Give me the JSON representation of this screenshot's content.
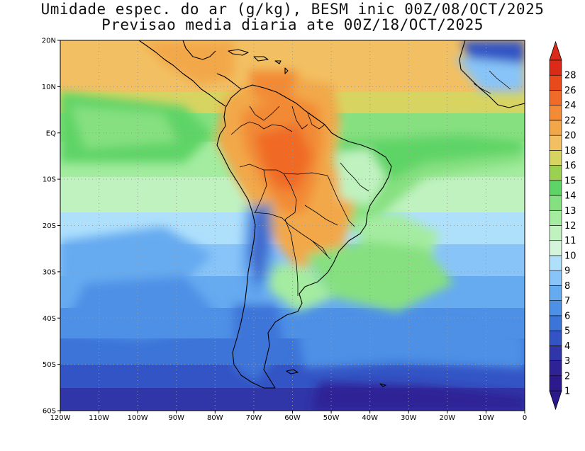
{
  "title": {
    "line1": "Umidade espec. do ar (g/kg), BESM inic 00Z/08/OCT/2025",
    "line2": "Previsao media diaria ate 00Z/18/OCT/2025"
  },
  "axes": {
    "lon_range": [
      -120,
      0
    ],
    "lat_range": [
      -60,
      20
    ],
    "lon_ticks": [
      {
        "lon": -120,
        "label": "120W"
      },
      {
        "lon": -110,
        "label": "110W"
      },
      {
        "lon": -100,
        "label": "100W"
      },
      {
        "lon": -90,
        "label": "90W"
      },
      {
        "lon": -80,
        "label": "80W"
      },
      {
        "lon": -70,
        "label": "70W"
      },
      {
        "lon": -60,
        "label": "60W"
      },
      {
        "lon": -50,
        "label": "50W"
      },
      {
        "lon": -40,
        "label": "40W"
      },
      {
        "lon": -30,
        "label": "30W"
      },
      {
        "lon": -20,
        "label": "20W"
      },
      {
        "lon": -10,
        "label": "10W"
      },
      {
        "lon": 0,
        "label": "0"
      }
    ],
    "lat_ticks": [
      {
        "lat": 20,
        "label": "20N"
      },
      {
        "lat": 10,
        "label": "10N"
      },
      {
        "lat": 0,
        "label": "EQ"
      },
      {
        "lat": -10,
        "label": "10S"
      },
      {
        "lat": -20,
        "label": "20S"
      },
      {
        "lat": -30,
        "label": "30S"
      },
      {
        "lat": -40,
        "label": "40S"
      },
      {
        "lat": -50,
        "label": "50S"
      },
      {
        "lat": -60,
        "label": "60S"
      }
    ],
    "grid": true
  },
  "colorbar": {
    "levels": [
      {
        "label": "1",
        "color": "#2c1a8c"
      },
      {
        "label": "2",
        "color": "#2e2296"
      },
      {
        "label": "3",
        "color": "#3036a8"
      },
      {
        "label": "4",
        "color": "#3354c4"
      },
      {
        "label": "5",
        "color": "#3c74d8"
      },
      {
        "label": "6",
        "color": "#4d90e6"
      },
      {
        "label": "7",
        "color": "#66aaf0"
      },
      {
        "label": "8",
        "color": "#88c4f8"
      },
      {
        "label": "9",
        "color": "#aee0fc"
      },
      {
        "label": "10",
        "color": "#d4f4dc"
      },
      {
        "label": "11",
        "color": "#c0f2c0"
      },
      {
        "label": "12",
        "color": "#a4eca0"
      },
      {
        "label": "13",
        "color": "#86e080"
      },
      {
        "label": "14",
        "color": "#5ed466"
      },
      {
        "label": "15",
        "color": "#9cd050"
      },
      {
        "label": "16",
        "color": "#d8d462"
      },
      {
        "label": "18",
        "color": "#f2c062"
      },
      {
        "label": "20",
        "color": "#f2a84a"
      },
      {
        "label": "22",
        "color": "#f28a36"
      },
      {
        "label": "24",
        "color": "#f06a28"
      },
      {
        "label": "26",
        "color": "#e84a1c"
      },
      {
        "label": "28",
        "color": "#dc2a18"
      }
    ]
  }
}
